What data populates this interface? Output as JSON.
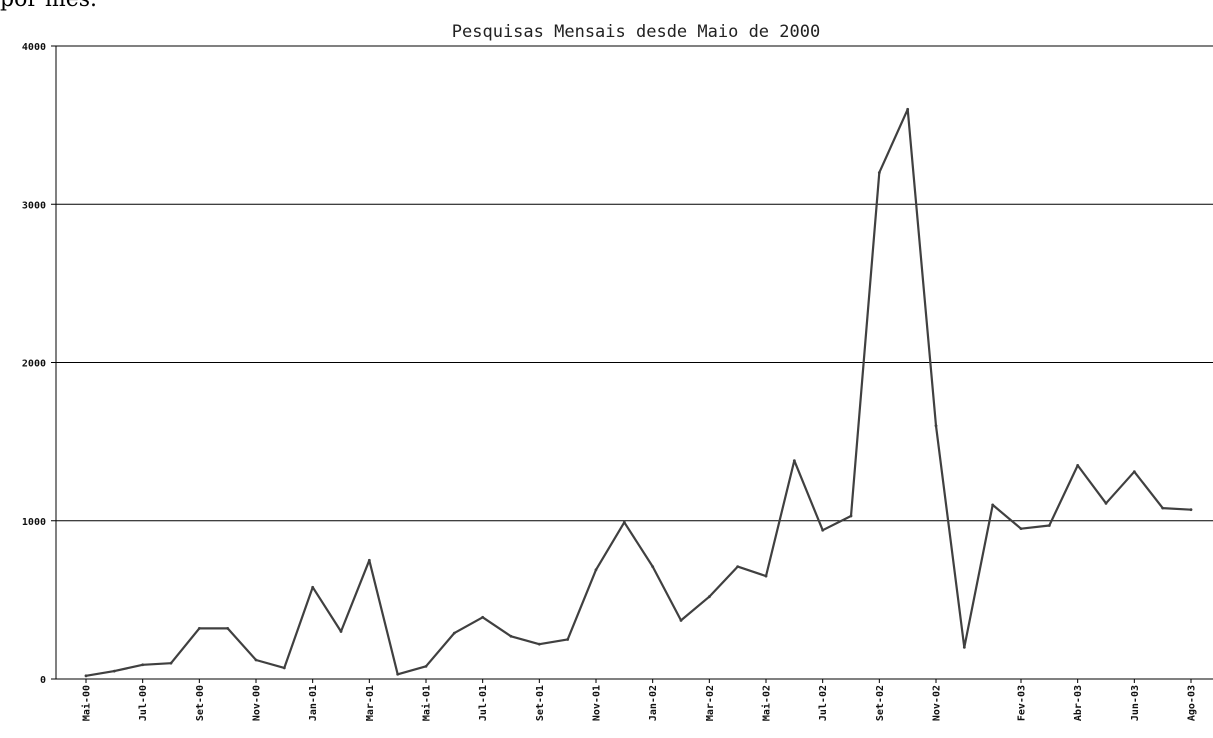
{
  "header_overflow_text": "por mês.",
  "chart_data": {
    "type": "line",
    "title": "Pesquisas Mensais desde Maio de 2000",
    "xlabel": "",
    "ylabel": "",
    "ylim": [
      0,
      4000
    ],
    "yticks": [
      0,
      1000,
      2000,
      3000,
      4000
    ],
    "grid": "horizontal",
    "line_color": "#404040",
    "categories": [
      "Mai-00",
      "Jun-00",
      "Jul-00",
      "Ago-00",
      "Set-00",
      "Out-00",
      "Nov-00",
      "Dez-00",
      "Jan-01",
      "Fev-01",
      "Mar-01",
      "Abr-01",
      "Mai-01",
      "Jun-01",
      "Jul-01",
      "Ago-01",
      "Set-01",
      "Out-01",
      "Nov-01",
      "Dez-01",
      "Jan-02",
      "Fev-02",
      "Mar-02",
      "Abr-02",
      "Mai-02",
      "Jun-02",
      "Jul-02",
      "Ago-02",
      "Set-02",
      "Out-02",
      "Nov-02",
      "Dez-02",
      "Jan-03",
      "Fev-03",
      "Mar-03",
      "Abr-03",
      "Mai-03",
      "Jun-03",
      "Jul-03",
      "Ago-03"
    ],
    "tick_labels": [
      "Mai-00",
      "Jul-00",
      "Set-00",
      "Nov-00",
      "Jan-01",
      "Mar-01",
      "Mai-01",
      "Jul-01",
      "Set-01",
      "Nov-01",
      "Jan-02",
      "Mar-02",
      "Mai-02",
      "Jul-02",
      "Set-02",
      "Nov-02",
      "Fev-03",
      "Abr-03",
      "Jun-03",
      "Ago-03"
    ],
    "tick_label_indices": [
      0,
      2,
      4,
      6,
      8,
      10,
      12,
      14,
      16,
      18,
      20,
      22,
      24,
      26,
      28,
      30,
      33,
      35,
      37,
      39
    ],
    "series": [
      {
        "values": [
          {
            "m": "Mai-00",
            "v": 20
          },
          {
            "m": "Jun-00",
            "v": 50
          },
          {
            "m": "Jul-00",
            "v": 90
          },
          {
            "m": "Ago-00",
            "v": 100
          },
          {
            "m": "Set-00",
            "v": 320
          },
          {
            "m": "Out-00",
            "v": 320
          },
          {
            "m": "Nov-00",
            "v": 120
          },
          {
            "m": "Dez-00",
            "v": 70
          },
          {
            "m": "Jan-01",
            "v": 580
          },
          {
            "m": "Fev-01",
            "v": 300
          },
          {
            "m": "Mar-01",
            "v": 750
          },
          {
            "m": "Abr-01",
            "v": 30
          },
          {
            "m": "Mai-01",
            "v": 80
          },
          {
            "m": "Jun-01",
            "v": 290
          },
          {
            "m": "Jul-01",
            "v": 390
          },
          {
            "m": "Ago-01",
            "v": 270
          },
          {
            "m": "Set-01",
            "v": 220
          },
          {
            "m": "Out-01",
            "v": 250
          },
          {
            "m": "Nov-01",
            "v": 690
          },
          {
            "m": "Dez-01",
            "v": 990
          },
          {
            "m": "Jan-02",
            "v": 710
          },
          {
            "m": "Fev-02",
            "v": 370
          },
          {
            "m": "Mar-02",
            "v": 520
          },
          {
            "m": "Abr-02",
            "v": 710
          },
          {
            "m": "Mai-02",
            "v": 650
          },
          {
            "m": "Jun-02",
            "v": 1380
          },
          {
            "m": "Jul-02",
            "v": 940
          },
          {
            "m": "Ago-02",
            "v": 1030
          },
          {
            "m": "Set-02",
            "v": 3200
          },
          {
            "m": "Out-02",
            "v": 3600
          },
          {
            "m": "Nov-02",
            "v": 1600
          },
          {
            "m": "Dez-02",
            "v": 200
          },
          {
            "m": "Jan-03",
            "v": 1100
          },
          {
            "m": "Fev-03",
            "v": 950
          },
          {
            "m": "Mar-03",
            "v": 970
          },
          {
            "m": "Abr-03",
            "v": 1350
          },
          {
            "m": "Mai-03",
            "v": 1110
          },
          {
            "m": "Jun-03",
            "v": 1310
          },
          {
            "m": "Jul-03",
            "v": 1080
          },
          {
            "m": "Ago-03",
            "v": 1070
          }
        ]
      }
    ]
  }
}
